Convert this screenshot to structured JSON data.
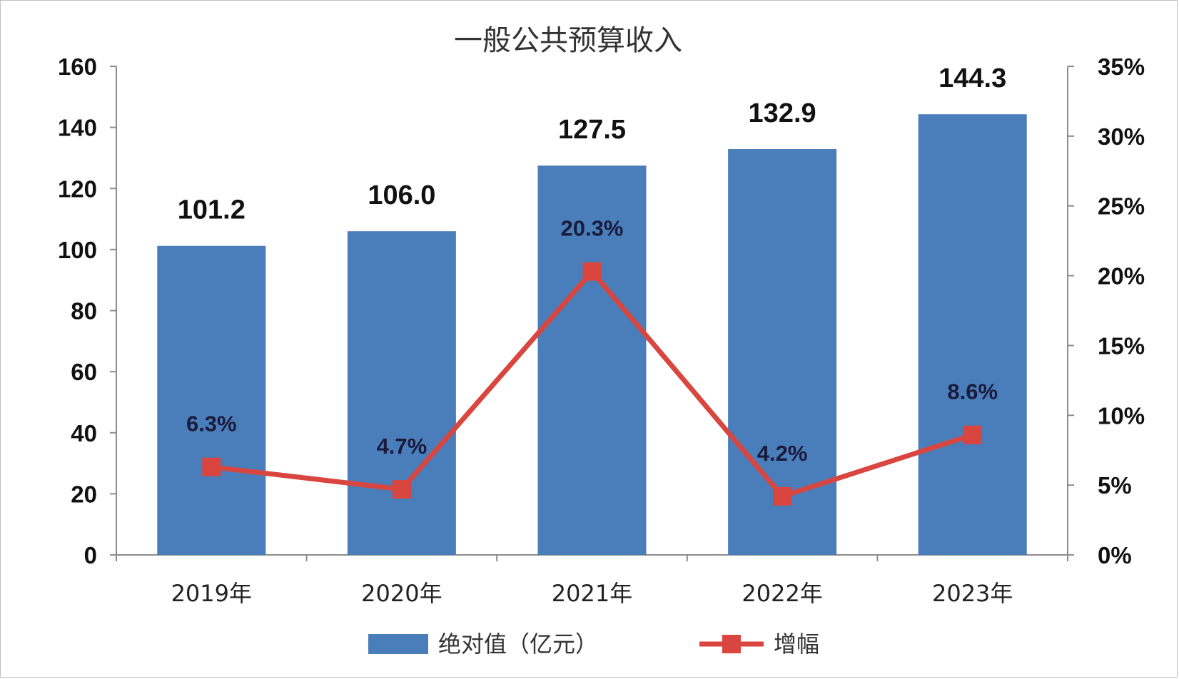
{
  "chart_data": {
    "type": "bar",
    "title": "一般公共预算收入",
    "categories": [
      "2019年",
      "2020年",
      "2021年",
      "2022年",
      "2023年"
    ],
    "series": [
      {
        "name": "绝对值（亿元）",
        "type": "bar",
        "axis": "left",
        "values": [
          101.2,
          106.0,
          127.5,
          132.9,
          144.3
        ],
        "labels": [
          "101.2",
          "106.0",
          "127.5",
          "132.9",
          "144.3"
        ],
        "color": "#4a7ebb"
      },
      {
        "name": "增幅",
        "type": "line",
        "axis": "right",
        "values": [
          6.3,
          4.7,
          20.3,
          4.2,
          8.6
        ],
        "labels": [
          "6.3%",
          "4.7%",
          "20.3%",
          "4.2%",
          "8.6%"
        ],
        "color": "#d9453f"
      }
    ],
    "y_left": {
      "range": [
        0,
        160
      ],
      "ticks": [
        0,
        20,
        40,
        60,
        80,
        100,
        120,
        140,
        160
      ],
      "tick_labels": [
        "0",
        "20",
        "40",
        "60",
        "80",
        "100",
        "120",
        "140",
        "160"
      ]
    },
    "y_right": {
      "range": [
        0,
        35
      ],
      "ticks": [
        0,
        5,
        10,
        15,
        20,
        25,
        30,
        35
      ],
      "tick_labels": [
        "0%",
        "5%",
        "10%",
        "15%",
        "20%",
        "25%",
        "30%",
        "35%"
      ]
    },
    "grid": false,
    "legend_position": "bottom"
  }
}
